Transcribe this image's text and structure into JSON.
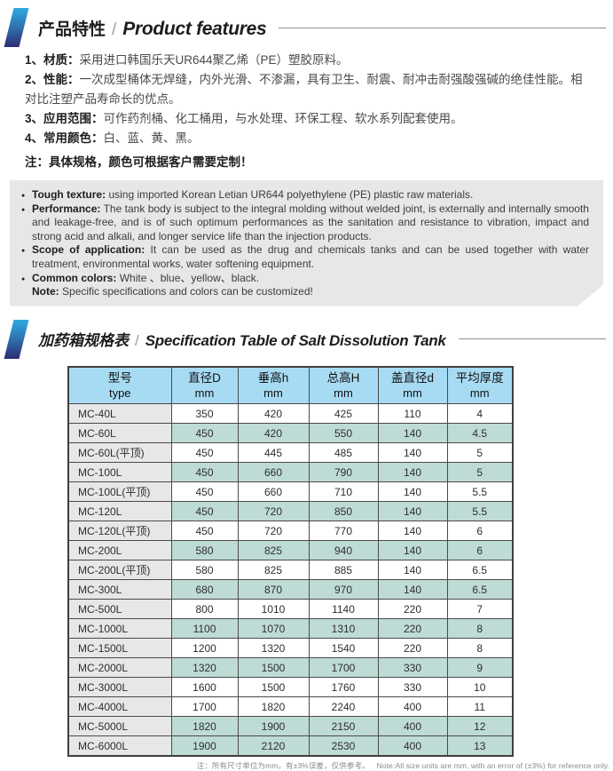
{
  "section1": {
    "title_zh": "产品特性",
    "divider": "/",
    "title_en": "Product features",
    "items": [
      {
        "label": "1、材质：",
        "text": "采用进口韩国乐天UR644聚乙烯（PE）塑胶原料。"
      },
      {
        "label": "2、性能：",
        "text": "一次成型桶体无焊缝，内外光滑、不渗漏，具有卫生、耐震、耐冲击耐强酸强碱的绝佳性能。相对比注塑产品寿命长的优点。"
      },
      {
        "label": "3、应用范围：",
        "text": "可作药剂桶、化工桶用，与水处理、环保工程、软水系列配套使用。"
      },
      {
        "label": "4、常用颜色：",
        "text": "白、蓝、黄、黑。"
      }
    ],
    "note": "注：具体规格，颜色可根据客户需要定制！"
  },
  "english_box": {
    "bullets": [
      {
        "label": "Tough texture:",
        "text": "using imported Korean Letian UR644 polyethylene (PE) plastic raw materials."
      },
      {
        "label": "Performance:",
        "text": "The tank body is subject to the integral molding without welded joint, is externally and internally smooth and leakage-free, and is of such optimum performances as the sanitation and resistance to vibration, impact and strong acid and alkali, and longer service life than the injection products."
      },
      {
        "label": "Scope of application:",
        "text": "It can be used as the drug and chemicals tanks and can be used together with water treatment, environmental works, water softening equipment."
      },
      {
        "label": "Common colors:",
        "text": "White 、blue、yellow、black."
      }
    ],
    "note_label": "Note:",
    "note_text": "Specific specifications and colors can be customized!"
  },
  "section2": {
    "title_zh": "加药箱规格表",
    "divider": "/",
    "title_en": "Specification Table of Salt Dissolution Tank"
  },
  "table": {
    "headers": [
      {
        "line1": "型号",
        "line2": "type"
      },
      {
        "line1": "直径D",
        "line2": "mm"
      },
      {
        "line1": "垂高h",
        "line2": "mm"
      },
      {
        "line1": "总高H",
        "line2": "mm"
      },
      {
        "line1": "盖直径d",
        "line2": "mm"
      },
      {
        "line1": "平均厚度",
        "line2": "mm"
      }
    ],
    "rows": [
      {
        "type": "MC-40L",
        "values": [
          "350",
          "420",
          "425",
          "110",
          "4"
        ],
        "shade": false
      },
      {
        "type": "MC-60L",
        "values": [
          "450",
          "420",
          "550",
          "140",
          "4.5"
        ],
        "shade": true
      },
      {
        "type": "MC-60L(平顶)",
        "values": [
          "450",
          "445",
          "485",
          "140",
          "5"
        ],
        "shade": false
      },
      {
        "type": "MC-100L",
        "values": [
          "450",
          "660",
          "790",
          "140",
          "5"
        ],
        "shade": true
      },
      {
        "type": "MC-100L(平顶)",
        "values": [
          "450",
          "660",
          "710",
          "140",
          "5.5"
        ],
        "shade": false
      },
      {
        "type": "MC-120L",
        "values": [
          "450",
          "720",
          "850",
          "140",
          "5.5"
        ],
        "shade": true
      },
      {
        "type": "MC-120L(平顶)",
        "values": [
          "450",
          "720",
          "770",
          "140",
          "6"
        ],
        "shade": false
      },
      {
        "type": "MC-200L",
        "values": [
          "580",
          "825",
          "940",
          "140",
          "6"
        ],
        "shade": true
      },
      {
        "type": "MC-200L(平顶)",
        "values": [
          "580",
          "825",
          "885",
          "140",
          "6.5"
        ],
        "shade": false
      },
      {
        "type": "MC-300L",
        "values": [
          "680",
          "870",
          "970",
          "140",
          "6.5"
        ],
        "shade": true
      },
      {
        "type": "MC-500L",
        "values": [
          "800",
          "1010",
          "1140",
          "220",
          "7"
        ],
        "shade": false
      },
      {
        "type": "MC-1000L",
        "values": [
          "1100",
          "1070",
          "1310",
          "220",
          "8"
        ],
        "shade": true
      },
      {
        "type": "MC-1500L",
        "values": [
          "1200",
          "1320",
          "1540",
          "220",
          "8"
        ],
        "shade": false
      },
      {
        "type": "MC-2000L",
        "values": [
          "1320",
          "1500",
          "1700",
          "330",
          "9"
        ],
        "shade": true
      },
      {
        "type": "MC-3000L",
        "values": [
          "1600",
          "1500",
          "1760",
          "330",
          "10"
        ],
        "shade": false
      },
      {
        "type": "MC-4000L",
        "values": [
          "1700",
          "1820",
          "2240",
          "400",
          "11"
        ],
        "shade": false
      },
      {
        "type": "MC-5000L",
        "values": [
          "1820",
          "1900",
          "2150",
          "400",
          "12"
        ],
        "shade": true
      },
      {
        "type": "MC-6000L",
        "values": [
          "1900",
          "2120",
          "2530",
          "400",
          "13"
        ],
        "shade": true
      }
    ],
    "footnote_zh": "注：所有尺寸单位为mm，有±3%误差，仅供参考。",
    "footnote_en": "Note:All size units are mm, with an error of (±3%) for reference only."
  },
  "colors": {
    "accent_gradient_top": "#2FA9E0",
    "accent_gradient_bottom": "#2F2C72",
    "table_header_blue": "#A7DBF4",
    "row_shade_teal": "#BFDBD5",
    "type_column_gray": "#E7E7E7",
    "english_box_gray": "#E5E7E9"
  }
}
